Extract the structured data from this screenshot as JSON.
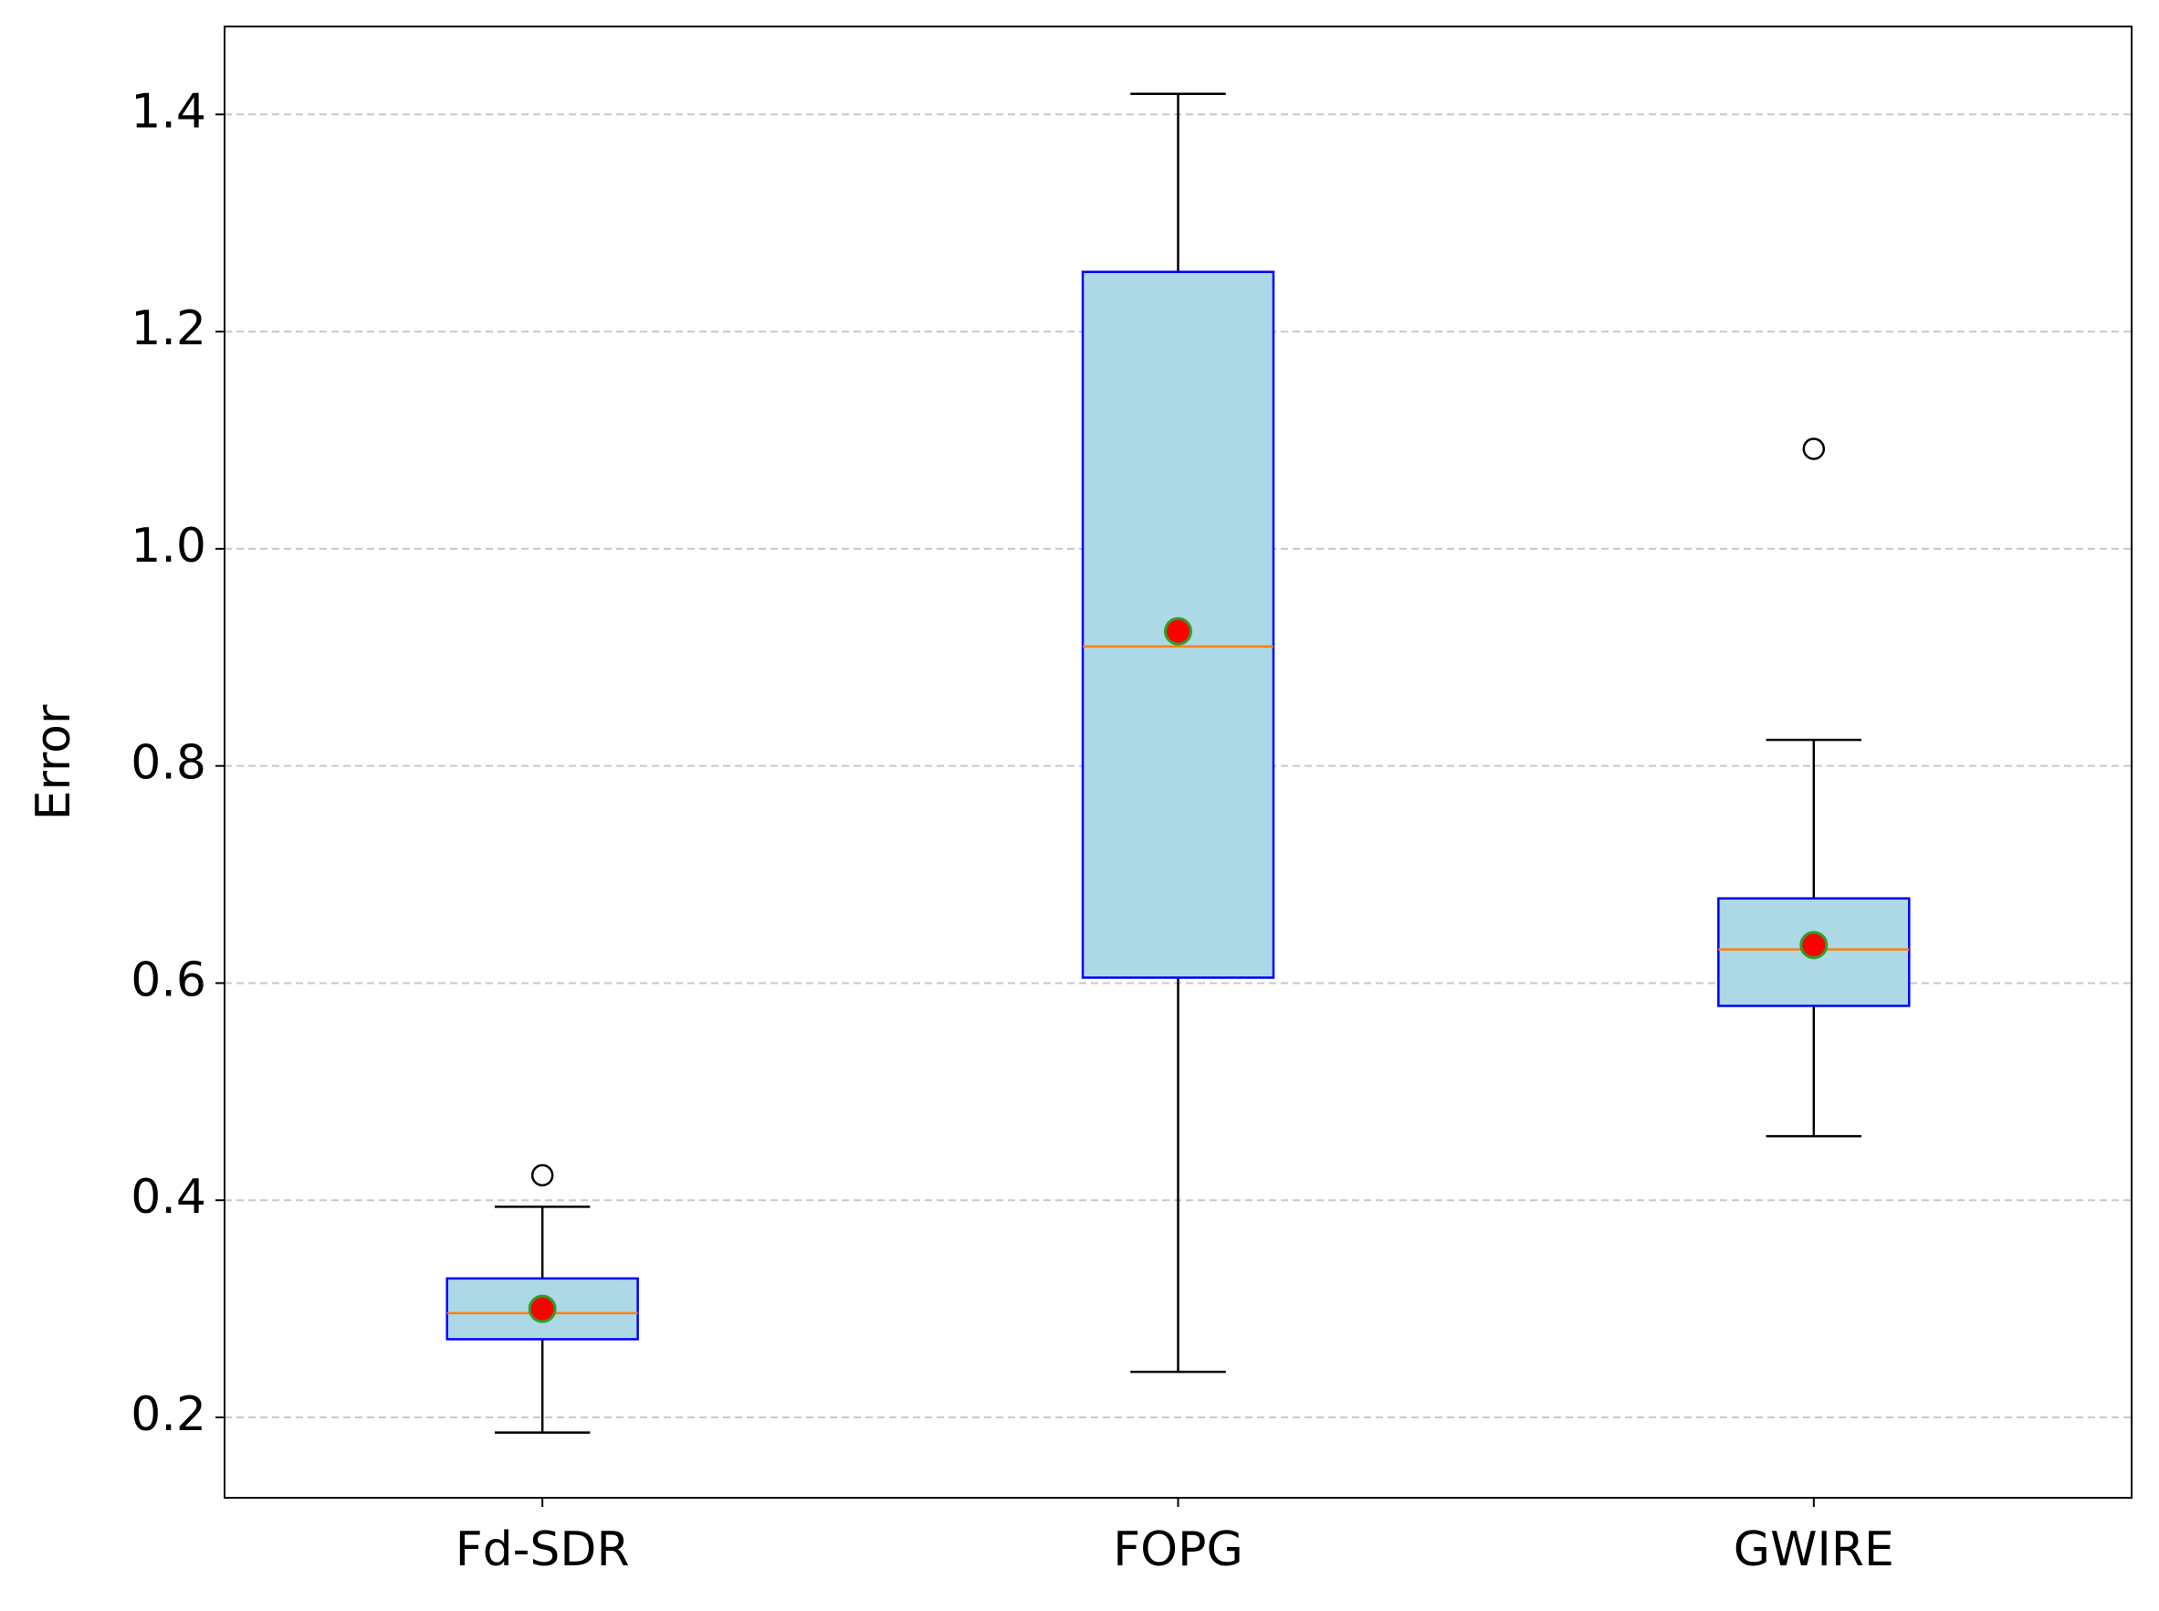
{
  "chart_data": {
    "type": "box",
    "ylabel": "Error",
    "categories": [
      "Fd-SDR",
      "FOPG",
      "GWIRE"
    ],
    "boxes": [
      {
        "whislo": 0.186,
        "q1": 0.272,
        "med": 0.296,
        "q3": 0.328,
        "whishi": 0.394,
        "mean": 0.3,
        "fliers": [
          0.423
        ]
      },
      {
        "whislo": 0.242,
        "q1": 0.605,
        "med": 0.91,
        "q3": 1.255,
        "whishi": 1.419,
        "mean": 0.924,
        "fliers": []
      },
      {
        "whislo": 0.459,
        "q1": 0.579,
        "med": 0.631,
        "q3": 0.678,
        "whishi": 0.824,
        "mean": 0.635,
        "fliers": [
          1.092
        ]
      }
    ],
    "box_color": "#add8e6",
    "box_edge_color": "#0000ff",
    "median_color": "#ff7f0e",
    "mean_color": "#ff0000",
    "mean_edge_color": "#2ca02c",
    "xlim": [
      0.5,
      3.5
    ],
    "ylim": [
      0.126,
      1.481
    ],
    "yticks": [
      0.2,
      0.4,
      0.6,
      0.8,
      {
        "value": 1,
        "label": "1.0"
      },
      1.2,
      1.4
    ],
    "grid": true
  }
}
